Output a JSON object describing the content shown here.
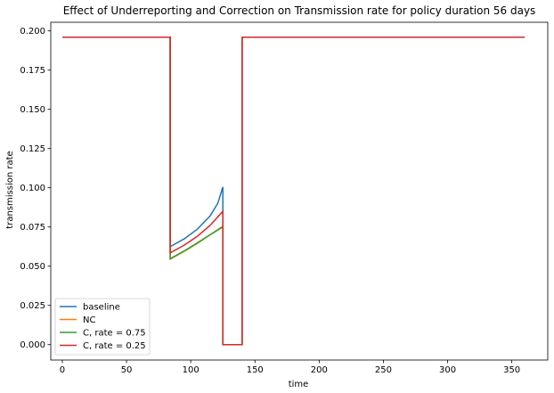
{
  "chart_data": {
    "type": "line",
    "title": "Effect of Underreporting and Correction on Transmission rate for policy duration 56 days",
    "xlabel": "time",
    "ylabel": "transmission rate",
    "xlim": [
      -9,
      378
    ],
    "ylim": [
      -0.0098,
      0.2055
    ],
    "xticks": [
      0,
      50,
      100,
      150,
      200,
      250,
      300,
      350
    ],
    "yticks": [
      0.0,
      0.025,
      0.05,
      0.075,
      0.1,
      0.125,
      0.15,
      0.175,
      0.2
    ],
    "ytick_labels": [
      "0.000",
      "0.025",
      "0.050",
      "0.075",
      "0.100",
      "0.125",
      "0.150",
      "0.175",
      "0.200"
    ],
    "xtick_labels": [
      "0",
      "50",
      "100",
      "150",
      "200",
      "250",
      "300",
      "350"
    ],
    "legend_position": "lower-left",
    "series": [
      {
        "name": "baseline",
        "color": "#1f77b4",
        "points": [
          [
            0,
            0.196
          ],
          [
            84,
            0.196
          ],
          [
            84,
            0.0625
          ],
          [
            95,
            0.0675
          ],
          [
            105,
            0.0735
          ],
          [
            115,
            0.082
          ],
          [
            121,
            0.09
          ],
          [
            125,
            0.1005
          ],
          [
            125,
            0.0
          ],
          [
            140,
            0.0
          ],
          [
            140,
            0.196
          ],
          [
            360,
            0.196
          ]
        ]
      },
      {
        "name": "NC",
        "color": "#ff7f0e",
        "points": [
          [
            0,
            0.196
          ],
          [
            84,
            0.196
          ],
          [
            84,
            0.0545
          ],
          [
            95,
            0.0595
          ],
          [
            105,
            0.0645
          ],
          [
            115,
            0.07
          ],
          [
            125,
            0.0755
          ],
          [
            125,
            0.0
          ],
          [
            140,
            0.0
          ],
          [
            140,
            0.196
          ],
          [
            360,
            0.196
          ]
        ]
      },
      {
        "name": "C, rate = 0.75",
        "color": "#2ca02c",
        "points": [
          [
            0,
            0.196
          ],
          [
            84,
            0.196
          ],
          [
            84,
            0.0548
          ],
          [
            95,
            0.0598
          ],
          [
            105,
            0.0648
          ],
          [
            115,
            0.07
          ],
          [
            125,
            0.075
          ],
          [
            125,
            0.0
          ],
          [
            140,
            0.0
          ],
          [
            140,
            0.196
          ],
          [
            360,
            0.196
          ]
        ]
      },
      {
        "name": "C, rate = 0.25",
        "color": "#d62728",
        "points": [
          [
            0,
            0.196
          ],
          [
            84,
            0.196
          ],
          [
            84,
            0.0585
          ],
          [
            95,
            0.0635
          ],
          [
            105,
            0.069
          ],
          [
            115,
            0.076
          ],
          [
            125,
            0.085
          ],
          [
            125,
            0.0
          ],
          [
            140,
            0.0
          ],
          [
            140,
            0.196
          ],
          [
            360,
            0.196
          ]
        ]
      }
    ]
  }
}
